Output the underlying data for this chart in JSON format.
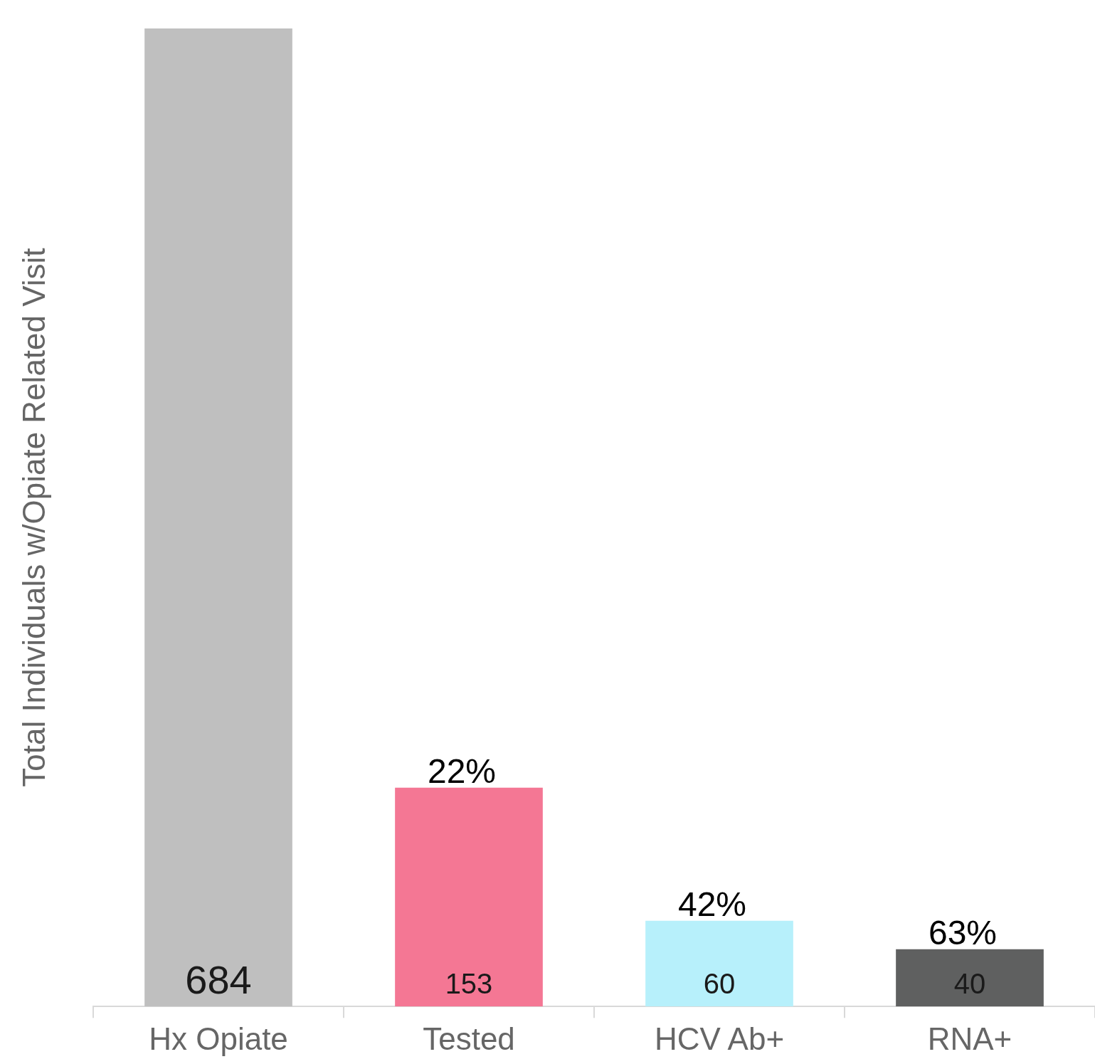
{
  "chart_data": {
    "type": "bar",
    "ylabel": "Total Individuals w/Opiate Related Visit",
    "categories": [
      "Hx Opiate",
      "Tested",
      "HCV Ab+",
      "RNA+"
    ],
    "values": [
      684,
      153,
      60,
      40
    ],
    "colors": [
      "#bfbfbf",
      "#f47794",
      "#b7f0fb",
      "#5f6060"
    ],
    "ylim": [
      0,
      684
    ],
    "tick_labels": "x",
    "data_labels": true,
    "grid": false,
    "legend": false,
    "annotations": [
      {
        "text": "22%",
        "x": "Tested",
        "y": 153
      },
      {
        "text": "42%",
        "x": "HCV Ab+",
        "y": 60
      },
      {
        "text": "63%",
        "x": "RNA+",
        "y": 40
      }
    ]
  }
}
